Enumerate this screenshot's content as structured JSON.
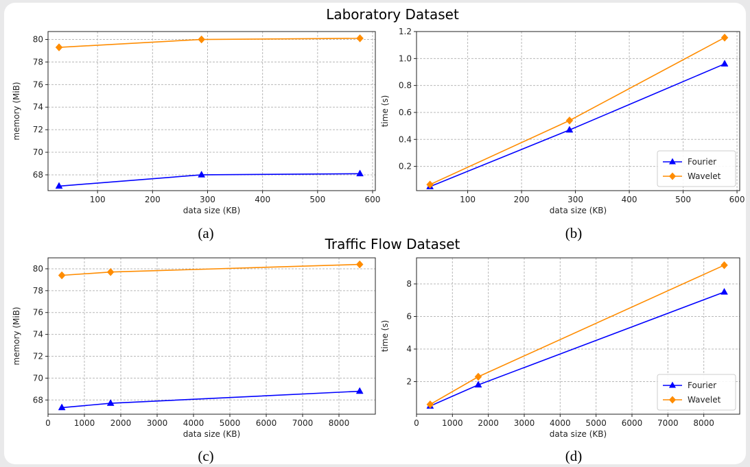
{
  "section_titles": [
    "Laboratory Dataset",
    "Traffic Flow Dataset"
  ],
  "captions": [
    "(a)",
    "(b)",
    "(c)",
    "(d)"
  ],
  "colors": {
    "fourier": "#0000ff",
    "wavelet": "#ff8c00"
  },
  "chart_data": [
    {
      "type": "line",
      "xlabel": "data size (KB)",
      "ylabel": "memory (MiB)",
      "xticks": [
        100,
        200,
        300,
        400,
        500,
        600
      ],
      "yticks": [
        68,
        70,
        72,
        74,
        76,
        78,
        80
      ],
      "xlim": [
        10,
        605
      ],
      "ylim": [
        66.6,
        80.7
      ],
      "grid": true,
      "legend": null,
      "series": [
        {
          "key": "fourier",
          "marker": "triangle",
          "x": [
            30,
            289,
            577
          ],
          "y": [
            67.0,
            68.0,
            68.1
          ]
        },
        {
          "key": "wavelet",
          "marker": "diamond",
          "x": [
            30,
            289,
            577
          ],
          "y": [
            79.3,
            80.0,
            80.1
          ]
        }
      ]
    },
    {
      "type": "line",
      "xlabel": "data size (KB)",
      "ylabel": "time (s)",
      "xticks": [
        100,
        200,
        300,
        400,
        500,
        600
      ],
      "yticks": [
        0.2,
        0.4,
        0.6,
        0.8,
        1.0,
        1.2
      ],
      "ytick_labels": [
        "0.2",
        "0.4",
        "0.6",
        "0.8",
        "1.0",
        "1.2"
      ],
      "xlim": [
        5,
        605
      ],
      "ylim": [
        0.02,
        1.2
      ],
      "grid": true,
      "legend": "bottom-right",
      "series": [
        {
          "key": "fourier",
          "name": "Fourier",
          "marker": "triangle",
          "x": [
            30,
            289,
            577
          ],
          "y": [
            0.05,
            0.47,
            0.96
          ]
        },
        {
          "key": "wavelet",
          "name": "Wavelet",
          "marker": "diamond",
          "x": [
            30,
            289,
            577
          ],
          "y": [
            0.065,
            0.54,
            1.155
          ]
        }
      ]
    },
    {
      "type": "line",
      "xlabel": "data size (KB)",
      "ylabel": "memory (MiB)",
      "xticks": [
        0,
        1000,
        2000,
        3000,
        4000,
        5000,
        6000,
        7000,
        8000
      ],
      "yticks": [
        68,
        70,
        72,
        74,
        76,
        78,
        80
      ],
      "xlim": [
        0,
        9000
      ],
      "ylim": [
        66.7,
        81.0
      ],
      "grid": true,
      "legend": null,
      "series": [
        {
          "key": "fourier",
          "marker": "triangle",
          "x": [
            380,
            1720,
            8570
          ],
          "y": [
            67.3,
            67.7,
            68.8
          ]
        },
        {
          "key": "wavelet",
          "marker": "diamond",
          "x": [
            380,
            1720,
            8570
          ],
          "y": [
            79.4,
            79.7,
            80.4
          ]
        }
      ]
    },
    {
      "type": "line",
      "xlabel": "data size (KB)",
      "ylabel": "time (s)",
      "xticks": [
        0,
        1000,
        2000,
        3000,
        4000,
        5000,
        6000,
        7000,
        8000
      ],
      "yticks": [
        2,
        4,
        6,
        8
      ],
      "xlim": [
        0,
        9000
      ],
      "ylim": [
        0.0,
        9.6
      ],
      "grid": true,
      "legend": "bottom-right",
      "series": [
        {
          "key": "fourier",
          "name": "Fourier",
          "marker": "triangle",
          "x": [
            380,
            1720,
            8570
          ],
          "y": [
            0.5,
            1.8,
            7.5
          ]
        },
        {
          "key": "wavelet",
          "name": "Wavelet",
          "marker": "diamond",
          "x": [
            380,
            1720,
            8570
          ],
          "y": [
            0.6,
            2.3,
            9.15
          ]
        }
      ]
    }
  ]
}
